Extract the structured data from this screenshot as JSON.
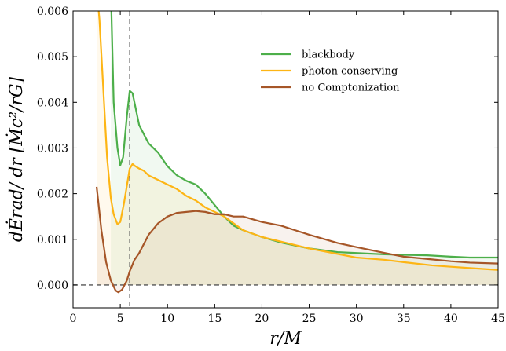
{
  "chart_data": {
    "type": "line",
    "xlabel": "r/M",
    "ylabel": "dĖrad/ dr [Ṁc²/rG]",
    "xlim": [
      0,
      45
    ],
    "ylim": [
      -0.0005,
      0.006
    ],
    "x_ticks": [
      "0",
      "5",
      "10",
      "15",
      "20",
      "25",
      "30",
      "35",
      "40",
      "45"
    ],
    "y_ticks": [
      "0.000",
      "0.001",
      "0.002",
      "0.003",
      "0.004",
      "0.005",
      "0.006"
    ],
    "y_tick_values": [
      0,
      0.001,
      0.002,
      0.003,
      0.004,
      0.005,
      0.006
    ],
    "x_tick_values": [
      0,
      5,
      10,
      15,
      20,
      25,
      30,
      35,
      40,
      45
    ],
    "vertical_reference_line_x": 6,
    "horizontal_reference_line_y": 0,
    "legend_position": "upper-right",
    "series": [
      {
        "name": "blackbody",
        "color": "#4daf4a",
        "x": [
          4.0,
          4.3,
          4.7,
          5.0,
          5.3,
          5.7,
          6.0,
          6.3,
          6.7,
          7.0,
          7.5,
          8.0,
          9.0,
          10.0,
          11.0,
          12.0,
          13.0,
          14.0,
          15.0,
          16.0,
          17.0,
          18.0,
          20.0,
          22.0,
          25.0,
          28.0,
          30.0,
          33.0,
          35.0,
          37.5,
          40.0,
          42.0,
          45.0
        ],
        "values": [
          0.0065,
          0.004,
          0.003,
          0.00262,
          0.0028,
          0.0037,
          0.00425,
          0.0042,
          0.0038,
          0.0035,
          0.0033,
          0.0031,
          0.0029,
          0.0026,
          0.0024,
          0.00228,
          0.0022,
          0.002,
          0.00175,
          0.0015,
          0.0013,
          0.0012,
          0.00105,
          0.00093,
          0.0008,
          0.00072,
          0.0007,
          0.00067,
          0.00066,
          0.00065,
          0.00062,
          0.0006,
          0.0006
        ]
      },
      {
        "name": "photon conserving",
        "color": "#fdb515",
        "x": [
          2.5,
          2.8,
          3.2,
          3.6,
          4.0,
          4.3,
          4.7,
          5.0,
          5.4,
          5.8,
          6.0,
          6.3,
          6.6,
          7.0,
          7.5,
          8.0,
          9.0,
          10.0,
          11.0,
          12.0,
          13.0,
          14.0,
          15.0,
          16.0,
          17.0,
          18.0,
          20.0,
          22.0,
          25.0,
          28.0,
          30.0,
          33.0,
          35.0,
          38.0,
          40.0,
          42.0,
          45.0
        ],
        "values": [
          0.0065,
          0.0058,
          0.0043,
          0.0028,
          0.0019,
          0.00155,
          0.00133,
          0.00138,
          0.0018,
          0.0023,
          0.00255,
          0.00265,
          0.0026,
          0.00255,
          0.0025,
          0.0024,
          0.0023,
          0.0022,
          0.0021,
          0.00195,
          0.00185,
          0.0017,
          0.0016,
          0.0015,
          0.00135,
          0.0012,
          0.00105,
          0.00095,
          0.0008,
          0.00068,
          0.0006,
          0.00055,
          0.0005,
          0.00043,
          0.0004,
          0.00037,
          0.00033
        ]
      },
      {
        "name": "no Comptonization",
        "color": "#a65628",
        "x": [
          2.5,
          3.0,
          3.5,
          4.0,
          4.5,
          4.8,
          5.2,
          5.7,
          6.0,
          6.5,
          7.0,
          7.5,
          8.0,
          9.0,
          10.0,
          11.0,
          12.0,
          13.0,
          14.0,
          15.0,
          16.0,
          17.0,
          18.0,
          20.0,
          22.0,
          25.0,
          28.0,
          30.0,
          33.0,
          35.0,
          38.0,
          40.0,
          42.0,
          45.0
        ],
        "values": [
          0.00215,
          0.0012,
          0.0005,
          0.0001,
          -0.00012,
          -0.00016,
          -0.0001,
          0.0001,
          0.0003,
          0.00055,
          0.0007,
          0.0009,
          0.0011,
          0.00135,
          0.0015,
          0.00158,
          0.0016,
          0.00162,
          0.0016,
          0.00155,
          0.00155,
          0.0015,
          0.0015,
          0.00138,
          0.0013,
          0.0011,
          0.00092,
          0.00083,
          0.0007,
          0.00062,
          0.00056,
          0.00052,
          0.00049,
          0.00047
        ]
      }
    ]
  }
}
